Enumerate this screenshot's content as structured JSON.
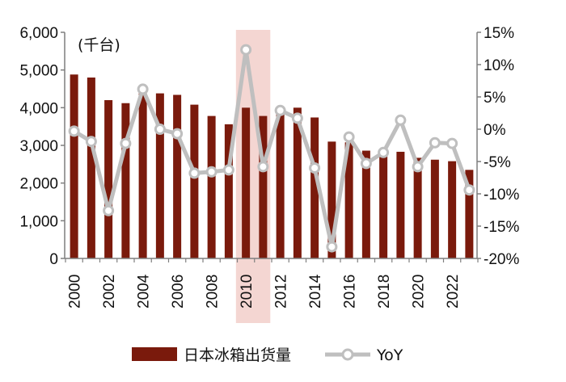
{
  "chart_data": {
    "type": "bar",
    "unit_label": "(千台)",
    "categories": [
      "2000",
      "2001",
      "2002",
      "2003",
      "2004",
      "2005",
      "2006",
      "2007",
      "2008",
      "2009",
      "2010",
      "2011",
      "2012",
      "2013",
      "2014",
      "2015",
      "2016",
      "2017",
      "2018",
      "2019",
      "2020",
      "2021",
      "2022",
      "2023"
    ],
    "x_tick_labels": [
      "2000",
      "2002",
      "2004",
      "2006",
      "2008",
      "2010",
      "2012",
      "2014",
      "2016",
      "2018",
      "2020",
      "2022"
    ],
    "series": [
      {
        "name": "日本冰箱出货量",
        "type": "bar",
        "axis": "left",
        "color": "#7a1a0c",
        "values": [
          4880,
          4800,
          4200,
          4120,
          4380,
          4380,
          4340,
          4080,
          3780,
          3560,
          4000,
          3780,
          3900,
          4000,
          3740,
          3100,
          3080,
          2860,
          2780,
          2830,
          2670,
          2620,
          2580,
          2350
        ]
      },
      {
        "name": "YoY",
        "type": "line",
        "axis": "right",
        "color": "#bfbfbf",
        "values": [
          -0.3,
          -1.9,
          -12.6,
          -2.2,
          6.2,
          0.0,
          -0.7,
          -6.8,
          -6.6,
          -6.3,
          12.3,
          -5.8,
          2.9,
          1.7,
          -6.0,
          -18.2,
          -1.2,
          -5.3,
          -3.6,
          1.4,
          -5.8,
          -2.1,
          -2.2,
          -9.4
        ]
      }
    ],
    "left_axis": {
      "ylim": [
        0,
        6000
      ],
      "tick_labels": [
        "0",
        "1,000",
        "2,000",
        "3,000",
        "4,000",
        "5,000",
        "6,000"
      ]
    },
    "right_axis": {
      "ylim": [
        -20,
        15
      ],
      "tick_labels": [
        "-20%",
        "-15%",
        "-10%",
        "-5%",
        "0%",
        "5%",
        "10%",
        "15%"
      ]
    },
    "highlight": {
      "category": "2010",
      "color": "#f4d6d2"
    },
    "legend": {
      "placement": "bottom",
      "entries": [
        "日本冰箱出货量",
        "YoY"
      ]
    },
    "grid": false
  }
}
